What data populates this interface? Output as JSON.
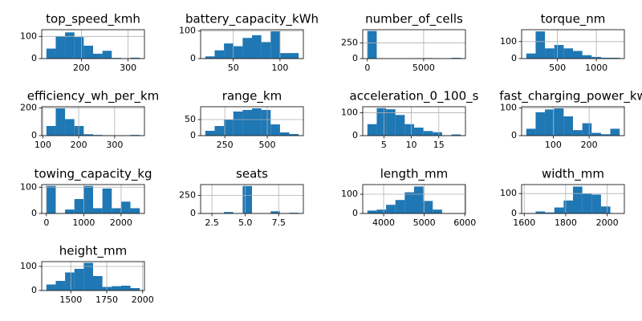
{
  "chart_data": [
    {
      "type": "histogram",
      "title": "top_speed_kmh",
      "bins": [
        125,
        145,
        165,
        185,
        205,
        225,
        245,
        265,
        285,
        305,
        325
      ],
      "counts": [
        45,
        100,
        118,
        97,
        58,
        22,
        35,
        3,
        0,
        4
      ],
      "color": "#1f77b4",
      "xlim": [
        115,
        335
      ],
      "ylim": [
        0,
        130
      ],
      "xticks": [
        200,
        300
      ],
      "yticks": [
        0,
        100
      ],
      "grid": true
    },
    {
      "type": "histogram",
      "title": "battery_capacity_kWh",
      "bins": [
        20,
        30,
        40,
        50,
        60,
        70,
        80,
        90,
        100,
        110,
        120
      ],
      "counts": [
        8,
        30,
        55,
        45,
        75,
        85,
        60,
        100,
        20,
        20
      ],
      "color": "#1f77b4",
      "xlim": [
        15,
        125
      ],
      "ylim": [
        0,
        105
      ],
      "xticks": [
        50,
        100
      ],
      "yticks": [
        0,
        100
      ],
      "grid": true
    },
    {
      "type": "histogram",
      "title": "number_of_cells",
      "bins": [
        0,
        830,
        1660,
        2490,
        3320,
        4150,
        4980,
        5810,
        6640,
        7470,
        8300
      ],
      "counts": [
        440,
        0,
        0,
        0,
        0,
        5,
        8,
        0,
        0,
        12
      ],
      "color": "#1f77b4",
      "xlim": [
        -415,
        8715
      ],
      "ylim": [
        0,
        460
      ],
      "xticks": [
        0,
        5000
      ],
      "yticks": [
        0,
        250
      ],
      "grid": true
    },
    {
      "type": "histogram",
      "title": "torque_nm",
      "bins": [
        100,
        220,
        340,
        460,
        580,
        700,
        820,
        940,
        1060,
        1180,
        1300
      ],
      "counts": [
        30,
        160,
        60,
        80,
        60,
        45,
        20,
        10,
        5,
        5
      ],
      "color": "#1f77b4",
      "xlim": [
        40,
        1360
      ],
      "ylim": [
        0,
        170
      ],
      "xticks": [
        500,
        1000
      ],
      "yticks": [
        0,
        100
      ],
      "grid": true
    },
    {
      "type": "histogram",
      "title": "efficiency_wh_per_km",
      "bins": [
        110,
        136,
        162,
        188,
        214,
        240,
        266,
        292,
        318,
        344,
        370
      ],
      "counts": [
        70,
        200,
        120,
        70,
        10,
        5,
        2,
        0,
        0,
        5
      ],
      "color": "#1f77b4",
      "xlim": [
        97,
        383
      ],
      "ylim": [
        0,
        210
      ],
      "xticks": [
        100,
        200,
        300
      ],
      "yticks": [
        0,
        200
      ],
      "grid": true
    },
    {
      "type": "histogram",
      "title": "range_km",
      "bins": [
        135,
        190,
        245,
        300,
        355,
        410,
        465,
        520,
        575,
        630,
        685
      ],
      "counts": [
        15,
        30,
        50,
        75,
        80,
        85,
        80,
        35,
        10,
        5
      ],
      "color": "#1f77b4",
      "xlim": [
        107.5,
        712.5
      ],
      "ylim": [
        0,
        90
      ],
      "xticks": [
        250,
        500
      ],
      "yticks": [
        0,
        50
      ],
      "grid": true
    },
    {
      "type": "histogram",
      "title": "acceleration_0_100_s",
      "bins": [
        2,
        3.7,
        5.4,
        7.1,
        8.8,
        10.5,
        12.2,
        13.9,
        15.6,
        17.3,
        19
      ],
      "counts": [
        50,
        120,
        115,
        90,
        50,
        35,
        20,
        15,
        0,
        5
      ],
      "color": "#1f77b4",
      "xlim": [
        1.15,
        19.85
      ],
      "ylim": [
        0,
        126
      ],
      "xticks": [
        5,
        10,
        15
      ],
      "yticks": [
        0,
        100
      ],
      "grid": true
    },
    {
      "type": "histogram",
      "title": "fast_charging_power_kw",
      "bins": [
        25,
        51,
        77,
        103,
        129,
        155,
        181,
        207,
        233,
        259,
        285
      ],
      "counts": [
        25,
        85,
        95,
        100,
        70,
        20,
        45,
        10,
        5,
        25
      ],
      "color": "#1f77b4",
      "xlim": [
        12,
        298
      ],
      "ylim": [
        0,
        105
      ],
      "xticks": [
        100,
        200
      ],
      "yticks": [
        0,
        100
      ],
      "grid": true
    },
    {
      "type": "histogram",
      "title": "towing_capacity_kg",
      "bins": [
        0,
        250,
        500,
        750,
        1000,
        1250,
        1500,
        1750,
        2000,
        2250,
        2500
      ],
      "counts": [
        105,
        0,
        15,
        55,
        105,
        20,
        95,
        20,
        45,
        20
      ],
      "color": "#1f77b4",
      "xlim": [
        -125,
        2625
      ],
      "ylim": [
        0,
        110
      ],
      "xticks": [
        0,
        1000,
        2000
      ],
      "yticks": [
        0,
        100
      ],
      "grid": true
    },
    {
      "type": "histogram",
      "title": "seats",
      "bins": [
        2,
        2.7,
        3.4,
        4.1,
        4.8,
        5.5,
        6.2,
        6.9,
        7.6,
        8.3,
        9
      ],
      "counts": [
        2,
        0,
        20,
        0,
        380,
        0,
        0,
        30,
        0,
        10
      ],
      "color": "#1f77b4",
      "xlim": [
        1.65,
        9.35
      ],
      "ylim": [
        0,
        400
      ],
      "xticks": [
        {
          "value": 2.5,
          "label": "2.5"
        },
        {
          "value": 5,
          "label": "5.0"
        },
        {
          "value": 7.5,
          "label": "7.5"
        }
      ],
      "yticks": [
        0,
        250
      ],
      "grid": true
    },
    {
      "type": "histogram",
      "title": "length_mm",
      "bins": [
        3600,
        3830,
        4060,
        4290,
        4520,
        4750,
        4980,
        5210,
        5440,
        5670,
        5900
      ],
      "counts": [
        15,
        20,
        45,
        70,
        110,
        140,
        65,
        20,
        0,
        2
      ],
      "color": "#1f77b4",
      "xlim": [
        3485,
        6015
      ],
      "ylim": [
        0,
        150
      ],
      "xticks": [
        4000,
        5000,
        6000
      ],
      "yticks": [
        0,
        100
      ],
      "grid": true
    },
    {
      "type": "histogram",
      "title": "width_mm",
      "bins": [
        1610,
        1655,
        1700,
        1745,
        1790,
        1835,
        1880,
        1925,
        1970,
        2015,
        2060
      ],
      "counts": [
        2,
        10,
        5,
        30,
        65,
        135,
        100,
        95,
        35,
        0
      ],
      "color": "#1f77b4",
      "xlim": [
        1587.5,
        2082.5
      ],
      "ylim": [
        0,
        145
      ],
      "xticks": [
        1600,
        1800,
        2000
      ],
      "yticks": [
        0,
        100
      ],
      "grid": true
    },
    {
      "type": "histogram",
      "title": "height_mm",
      "bins": [
        1330,
        1395,
        1460,
        1525,
        1590,
        1655,
        1720,
        1785,
        1850,
        1915,
        1980
      ],
      "counts": [
        25,
        40,
        75,
        90,
        115,
        60,
        15,
        18,
        20,
        10
      ],
      "color": "#1f77b4",
      "xlim": [
        1297.5,
        2012.5
      ],
      "ylim": [
        0,
        120
      ],
      "xticks": [
        1500,
        1750,
        2000
      ],
      "yticks": [
        0,
        100
      ],
      "grid": true
    }
  ]
}
